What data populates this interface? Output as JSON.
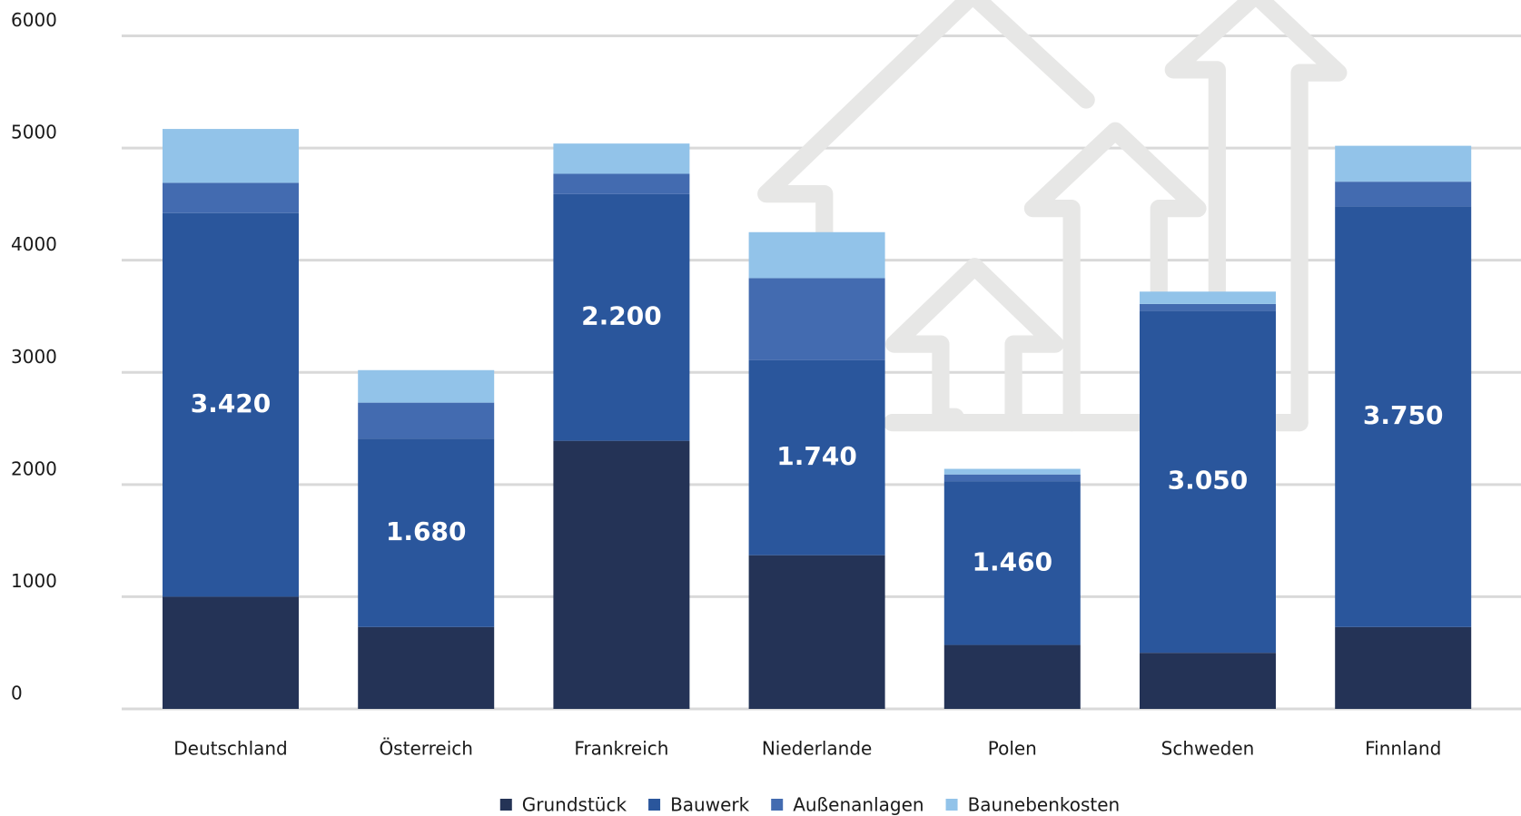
{
  "chart_data": {
    "type": "stacked-bar",
    "categories": [
      "Deutschland",
      "Österreich",
      "Frankreich",
      "Niederlande",
      "Polen",
      "Schweden",
      "Finnland"
    ],
    "series": [
      {
        "name": "Grundstück",
        "color": "#243356",
        "values": [
          1000,
          730,
          2390,
          1370,
          570,
          500,
          730
        ]
      },
      {
        "name": "Bauwerk",
        "color": "#2a569c",
        "values": [
          3420,
          1680,
          2200,
          1740,
          1460,
          3050,
          3750
        ],
        "value_labels": [
          "3.420",
          "1.680",
          "2.200",
          "1.740",
          "1.460",
          "3.050",
          "3.750"
        ]
      },
      {
        "name": "Außenanlagen",
        "color": "#436bb0",
        "values": [
          270,
          320,
          180,
          730,
          60,
          60,
          220
        ]
      },
      {
        "name": "Baunebenkosten",
        "color": "#92c3e9",
        "values": [
          480,
          290,
          270,
          410,
          50,
          110,
          320
        ]
      }
    ],
    "ylim": [
      0,
      6000
    ],
    "yticks": [
      0,
      1000,
      2000,
      3000,
      4000,
      5000,
      6000
    ],
    "grid": true,
    "legend": "bottom"
  }
}
